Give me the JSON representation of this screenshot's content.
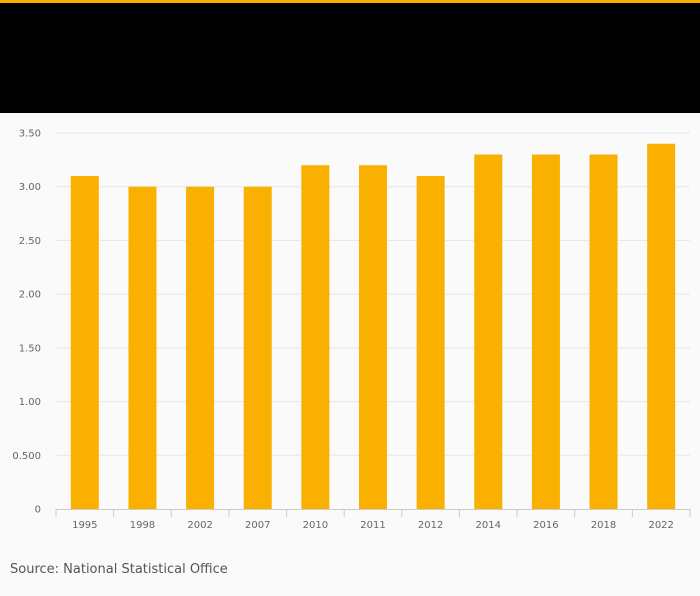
{
  "colors": {
    "accent": "#f7b100",
    "bar": "#f9b000",
    "header_band": "#000000",
    "grid": "#e6e6e6",
    "axis": "#cccccc"
  },
  "source": "Source: National Statistical Office",
  "chart_data": {
    "type": "bar",
    "categories": [
      "1995",
      "1998",
      "2002",
      "2007",
      "2010",
      "2011",
      "2012",
      "2014",
      "2016",
      "2018",
      "2022"
    ],
    "values": [
      3.1,
      3.0,
      3.0,
      3.0,
      3.2,
      3.2,
      3.1,
      3.3,
      3.3,
      3.3,
      3.4
    ],
    "ylim": [
      0,
      3.5
    ],
    "yticks": [
      0,
      0.5,
      1.0,
      1.5,
      2.0,
      2.5,
      3.0,
      3.5
    ],
    "ytick_labels": [
      "0",
      "0.500",
      "1.00",
      "1.50",
      "2.00",
      "2.50",
      "3.00",
      "3.50"
    ],
    "grid": true,
    "legend": "none",
    "title": "",
    "xlabel": "",
    "ylabel": ""
  }
}
